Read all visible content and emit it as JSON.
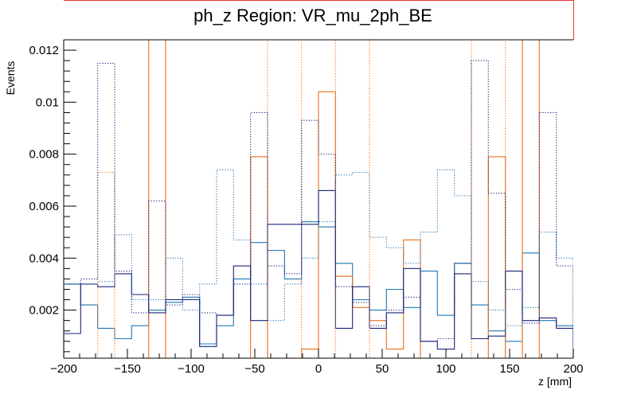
{
  "chart_data": {
    "type": "histogram",
    "title": "ph_z Region: VR_mu_2ph_BE",
    "xlabel": "z [mm]",
    "ylabel": "Events",
    "xlim": [
      -200,
      200
    ],
    "ylim": [
      0.00015,
      0.0124
    ],
    "bin_edges": [
      -200,
      -186.7,
      -173.3,
      -160,
      -146.7,
      -133.3,
      -120,
      -106.7,
      -93.3,
      -80,
      -66.7,
      -53.3,
      -40,
      -26.7,
      -13.3,
      0,
      13.3,
      26.7,
      40,
      53.3,
      66.7,
      80,
      93.3,
      106.7,
      120,
      133.3,
      146.7,
      160,
      173.3,
      186.7,
      200
    ],
    "x_ticks": [
      -200,
      -150,
      -100,
      -50,
      0,
      50,
      100,
      150,
      200
    ],
    "x_tick_labels": [
      "−200",
      "−150",
      "−100",
      "−50",
      "0",
      "50",
      "100",
      "150",
      "200"
    ],
    "y_ticks": [
      0.002,
      0.004,
      0.006,
      0.008,
      0.01,
      0.012
    ],
    "y_tick_labels": [
      "0.002",
      "0.004",
      "0.006",
      "0.008",
      "0.01",
      "0.012"
    ],
    "series": [
      {
        "color": "#1f77b4",
        "style": "solid",
        "values": [
          0.003,
          0.0022,
          0.0013,
          0.0009,
          0.0014,
          0.002,
          0.0023,
          0.0025,
          0.0007,
          0.0014,
          0.0032,
          0.0046,
          0.0043,
          0.0032,
          0.0054,
          0.0052,
          0.0038,
          0.0024,
          0.002,
          0.0028,
          0.0021,
          0.0035,
          0.0018,
          0.0038,
          0.0022,
          0.0012,
          0.0008,
          0.0042,
          0.0016,
          0.0014
        ]
      },
      {
        "color": "#e8701a",
        "style": "solid",
        "values": [
          0.0001,
          0.0001,
          0.0001,
          0.0001,
          0.0001,
          0.0124,
          0.0001,
          0.0001,
          0.0001,
          0.0001,
          0.0001,
          0.0079,
          0.0001,
          0.0001,
          0.0005,
          0.0104,
          0.0033,
          0.0021,
          0.0016,
          0.0005,
          0.0047,
          0.0001,
          0.0001,
          0.0001,
          0.0001,
          0.0079,
          0.0001,
          0.0124,
          0.0001,
          0.0001
        ]
      },
      {
        "color": "#1a237e",
        "style": "solid",
        "values": [
          0.0011,
          0.003,
          0.0029,
          0.0034,
          0.0026,
          0.0019,
          0.0024,
          0.0024,
          0.0006,
          0.0018,
          0.0037,
          0.0016,
          0.0053,
          0.0053,
          0.0053,
          0.0066,
          0.0013,
          0.0029,
          0.0013,
          0.0019,
          0.0036,
          0.0008,
          0.0005,
          0.0034,
          0.0009,
          0.001,
          0.0035,
          0.0016,
          0.0017,
          0.0013
        ]
      },
      {
        "color": "#1f77b4",
        "style": "dotted",
        "values": [
          0.003,
          0.003,
          0.0031,
          0.0049,
          0.0024,
          0.0024,
          0.004,
          0.002,
          0.003,
          0.0074,
          0.0047,
          0.003,
          0.0016,
          0.003,
          0.004,
          0.0054,
          0.0072,
          0.0073,
          0.0048,
          0.0044,
          0.0038,
          0.005,
          0.0074,
          0.0064,
          0.0031,
          0.002,
          0.0014,
          0.0021,
          0.005,
          0.004
        ]
      },
      {
        "color": "#e8701a",
        "style": "dotted",
        "values": [
          0.0001,
          0.0001,
          0.0073,
          0.0001,
          0.0001,
          0.0001,
          0.0001,
          0.0001,
          0.0001,
          0.0001,
          0.0001,
          0.0001,
          0.0124,
          0.0124,
          0.0005,
          0.0001,
          0.0124,
          0.0124,
          0.0001,
          0.0001,
          0.0001,
          0.0001,
          0.0001,
          0.0001,
          0.0124,
          0.0124,
          0.0001,
          0.0001,
          0.0001,
          0.0001
        ]
      },
      {
        "color": "#1a237e",
        "style": "dotted",
        "values": [
          0.003,
          0.0032,
          0.0115,
          0.0035,
          0.0019,
          0.0062,
          0.0022,
          0.0026,
          0.0019,
          0.0018,
          0.003,
          0.0096,
          0.0037,
          0.0034,
          0.0093,
          0.008,
          0.0029,
          0.0023,
          0.0014,
          0.002,
          0.0025,
          0.0008,
          0.0009,
          0.0038,
          0.0116,
          0.0065,
          0.0028,
          0.0015,
          0.0096,
          0.0037
        ]
      }
    ]
  }
}
